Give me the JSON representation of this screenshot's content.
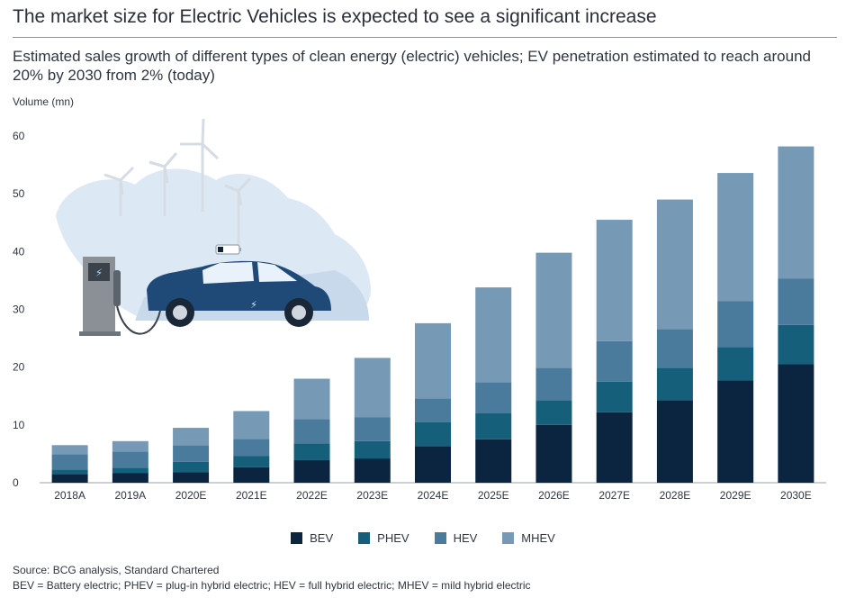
{
  "header": {
    "title": "The market size for Electric Vehicles is expected to see a significant increase",
    "subtitle": "Estimated sales growth of different types of clean energy (electric) vehicles; EV penetration estimated to reach around 20% by 2030 from 2% (today)"
  },
  "chart_data": {
    "type": "bar",
    "stacked": true,
    "ylabel": "Volume (mn)",
    "ylim": [
      0,
      60
    ],
    "yticks": [
      0,
      10,
      20,
      30,
      40,
      50,
      60
    ],
    "grid": false,
    "categories": [
      "2018A",
      "2019A",
      "2020E",
      "2021E",
      "2022E",
      "2023E",
      "2024E",
      "2025E",
      "2026E",
      "2027E",
      "2028E",
      "2029E",
      "2030E"
    ],
    "series": [
      {
        "name": "BEV",
        "color": "#0b2440",
        "values": [
          1.5,
          1.7,
          1.8,
          2.7,
          3.9,
          4.2,
          6.3,
          7.5,
          10.0,
          12.2,
          14.3,
          17.7,
          20.5
        ]
      },
      {
        "name": "PHEV",
        "color": "#165f7a",
        "values": [
          0.8,
          0.9,
          1.8,
          1.9,
          2.9,
          3.0,
          4.2,
          4.5,
          4.3,
          5.3,
          5.6,
          5.8,
          6.8
        ]
      },
      {
        "name": "HEV",
        "color": "#4b7b9c",
        "values": [
          2.6,
          2.8,
          2.9,
          3.0,
          4.2,
          4.1,
          4.1,
          5.4,
          5.6,
          7.0,
          6.7,
          7.9,
          8.0
        ]
      },
      {
        "name": "MHEV",
        "color": "#7699b5",
        "values": [
          1.6,
          1.8,
          3.0,
          4.8,
          7.0,
          10.3,
          13.0,
          16.4,
          19.9,
          21.0,
          22.4,
          22.2,
          22.9
        ]
      }
    ]
  },
  "illustration": {
    "label": "electric-car-charging-with-wind-turbines",
    "colors": {
      "car": "#1f4a78",
      "sky": "#dde8f5",
      "charger": "#8a9096"
    }
  },
  "footer": {
    "source": "Source: BCG analysis, Standard Chartered",
    "note": "BEV = Battery electric; PHEV = plug-in hybrid electric; HEV = full hybrid electric; MHEV = mild hybrid electric"
  }
}
